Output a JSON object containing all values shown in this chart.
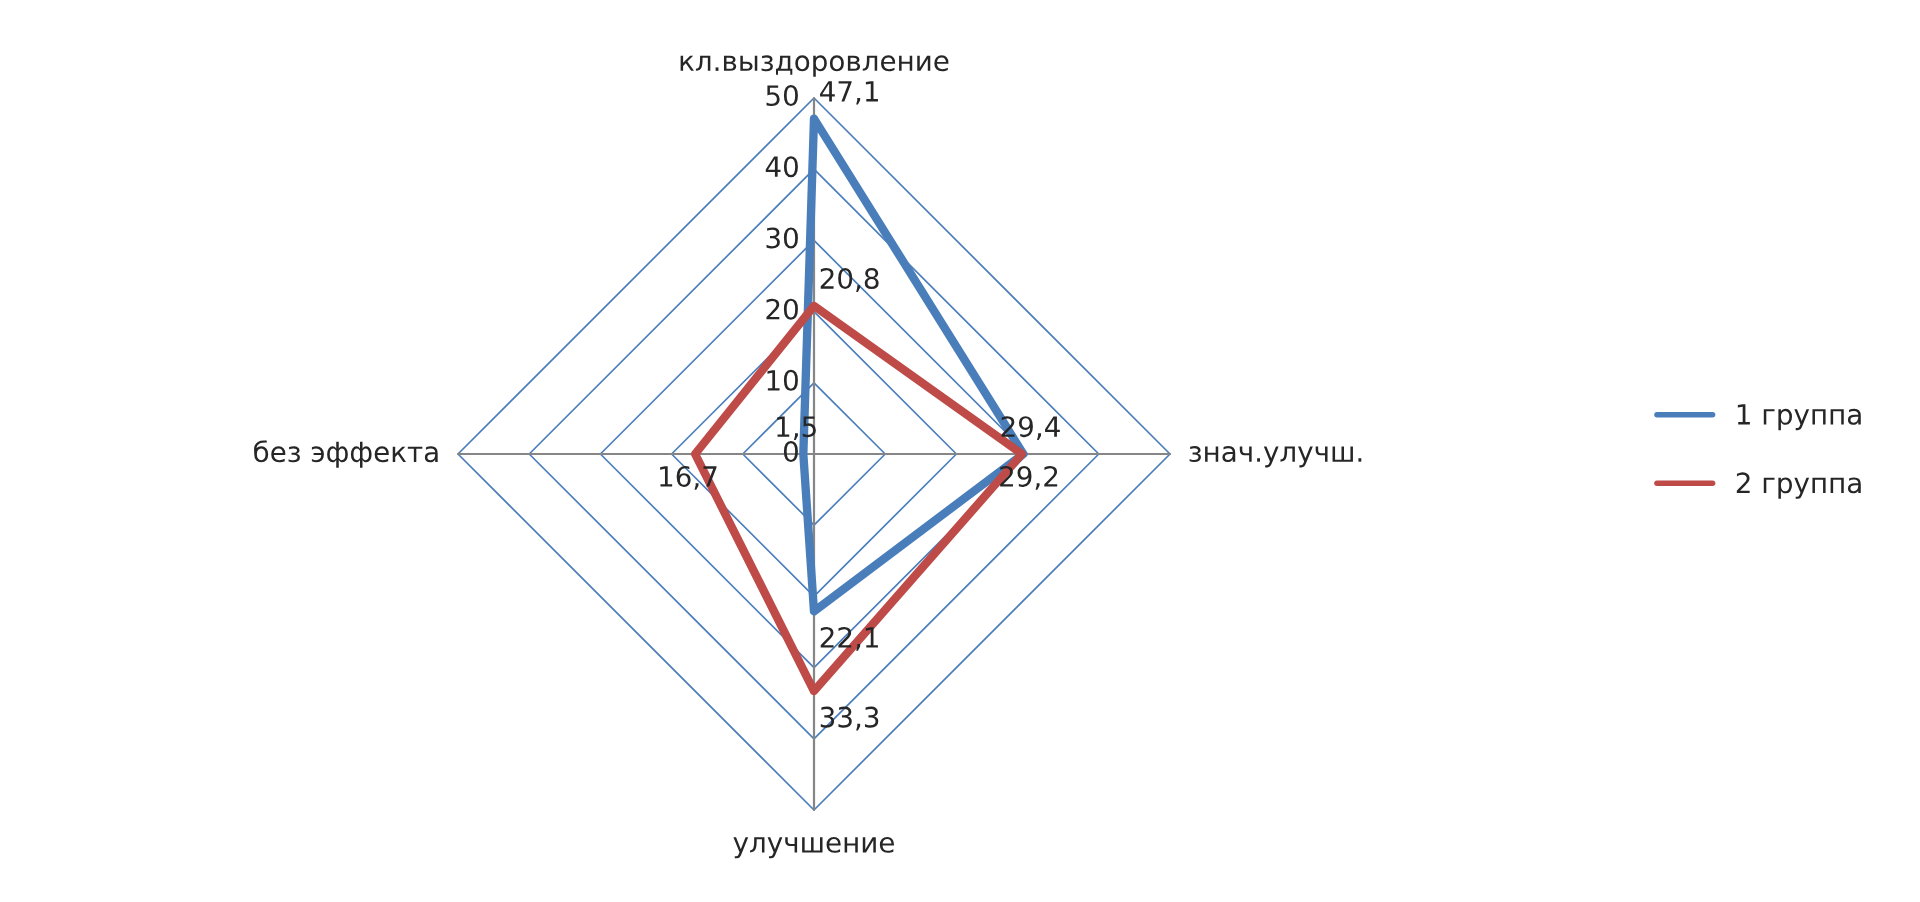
{
  "chart_data": {
    "type": "radar",
    "categories": [
      "кл.выздоровление",
      "знач.улучш.",
      "улучшение",
      "без эффекта"
    ],
    "series": [
      {
        "name": "1 группа",
        "color": "#4a7ebb",
        "values": [
          47.1,
          29.4,
          22.1,
          1.5
        ],
        "value_labels": [
          "47,1",
          "29,4",
          "22,1",
          "1,5"
        ]
      },
      {
        "name": "2 группа",
        "color": "#be4b48",
        "values": [
          20.8,
          29.2,
          33.3,
          16.7
        ],
        "value_labels": [
          "20,8",
          "29,2",
          "33,3",
          "16,7"
        ]
      }
    ],
    "ylim": [
      0,
      50
    ],
    "yticks": [
      0,
      10,
      20,
      30,
      40,
      50
    ],
    "grid": true,
    "legend": "right"
  }
}
